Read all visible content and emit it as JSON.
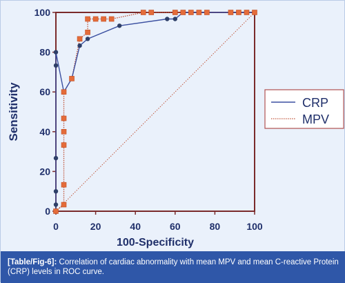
{
  "chart_data": {
    "type": "line",
    "xlabel": "100-Specificity",
    "ylabel": "Sensitivity",
    "xlim": [
      0,
      100
    ],
    "ylim": [
      0,
      100
    ],
    "xticks": [
      "0",
      "20",
      "40",
      "60",
      "80",
      "100"
    ],
    "yticks": [
      "0",
      "20",
      "40",
      "60",
      "80",
      "100"
    ],
    "grid": false,
    "legend_position": "right",
    "diagonal_reference": true,
    "series": [
      {
        "name": "CRP",
        "color": "#3a4fa0",
        "line_style": "solid",
        "marker": "circle",
        "marker_color": "#2e3f68",
        "x": [
          0,
          0,
          0,
          0,
          0,
          0,
          4,
          8,
          12,
          16,
          32,
          56,
          60,
          64,
          68,
          72,
          76,
          88,
          92,
          96,
          100
        ],
        "y": [
          0,
          3.3,
          10,
          26.7,
          73.3,
          80,
          60,
          66.7,
          83.3,
          86.7,
          93.3,
          96.7,
          96.7,
          100,
          100,
          100,
          100,
          100,
          100,
          100,
          100
        ]
      },
      {
        "name": "MPV",
        "color": "#c0553a",
        "line_style": "dotted",
        "marker": "square",
        "marker_color": "#e46c3a",
        "x": [
          0,
          4,
          4,
          4,
          4,
          4,
          4,
          8,
          12,
          16,
          16,
          20,
          24,
          28,
          44,
          48,
          60,
          64,
          68,
          72,
          76,
          88,
          92,
          96,
          100
        ],
        "y": [
          0,
          3.3,
          13.3,
          33.3,
          40,
          46.7,
          60,
          66.7,
          86.7,
          90,
          96.7,
          96.7,
          96.7,
          96.7,
          100,
          100,
          100,
          100,
          100,
          100,
          100,
          100,
          100,
          100,
          100
        ]
      }
    ]
  },
  "caption": {
    "tag": "[Table/Fig-6]:",
    "text": " Correlation of cardiac abnormality with mean MPV and mean C-reactive Protein (CRP) levels in ROC curve."
  }
}
